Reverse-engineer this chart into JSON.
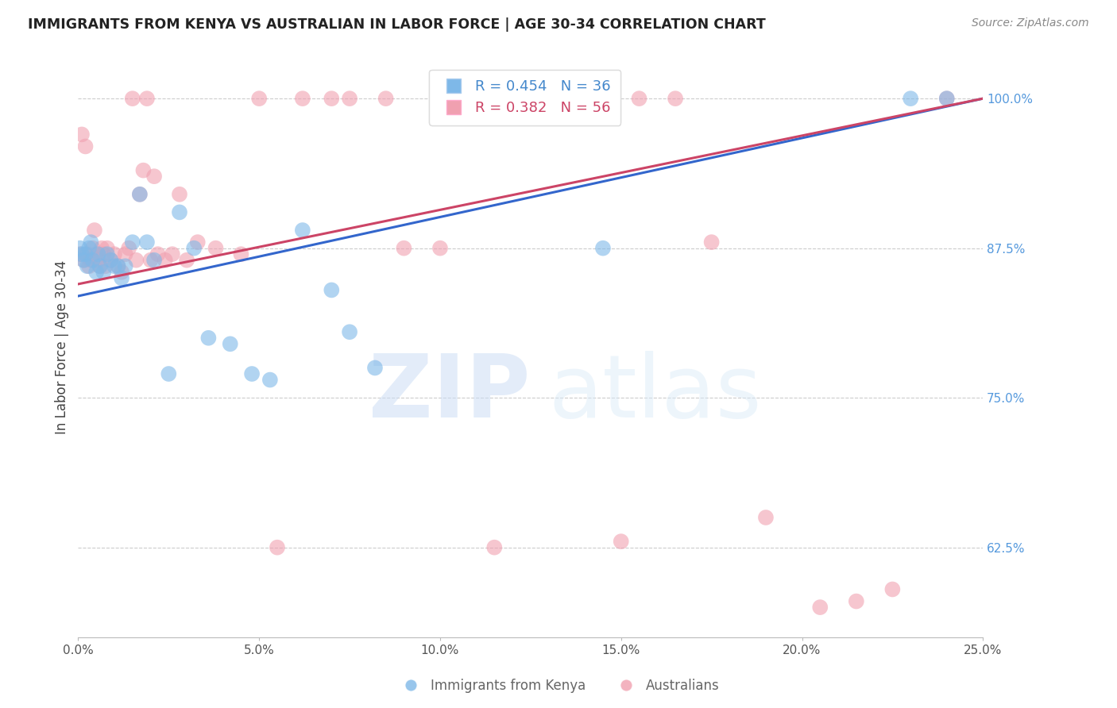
{
  "title": "IMMIGRANTS FROM KENYA VS AUSTRALIAN IN LABOR FORCE | AGE 30-34 CORRELATION CHART",
  "source": "Source: ZipAtlas.com",
  "ylabel": "In Labor Force | Age 30-34",
  "xlim": [
    0.0,
    25.0
  ],
  "ylim": [
    55.0,
    103.5
  ],
  "xlabel_vals": [
    0.0,
    5.0,
    10.0,
    15.0,
    20.0,
    25.0
  ],
  "ylabel_vals": [
    62.5,
    75.0,
    87.5,
    100.0
  ],
  "blue_color": "#7eb8e8",
  "pink_color": "#f0a0b0",
  "blue_line_color": "#3366cc",
  "pink_line_color": "#cc4466",
  "blue_R": 0.454,
  "blue_N": 36,
  "pink_R": 0.382,
  "pink_N": 56,
  "kenya_x": [
    0.05,
    0.1,
    0.15,
    0.2,
    0.25,
    0.3,
    0.35,
    0.4,
    0.5,
    0.55,
    0.6,
    0.7,
    0.8,
    0.9,
    1.0,
    1.1,
    1.2,
    1.3,
    1.5,
    1.7,
    1.9,
    2.1,
    2.5,
    2.8,
    3.2,
    3.6,
    4.2,
    4.8,
    5.3,
    6.2,
    7.0,
    7.5,
    8.2,
    14.5,
    23.0,
    24.0
  ],
  "kenya_y": [
    87.5,
    87.0,
    86.5,
    87.0,
    86.0,
    87.5,
    88.0,
    86.5,
    85.5,
    87.0,
    86.0,
    85.5,
    87.0,
    86.5,
    86.0,
    86.0,
    85.0,
    86.0,
    88.0,
    92.0,
    88.0,
    86.5,
    77.0,
    90.5,
    87.5,
    80.0,
    79.5,
    77.0,
    76.5,
    89.0,
    84.0,
    80.5,
    77.5,
    87.5,
    100.0,
    100.0
  ],
  "aus_x": [
    0.05,
    0.1,
    0.15,
    0.2,
    0.25,
    0.3,
    0.35,
    0.4,
    0.45,
    0.5,
    0.55,
    0.6,
    0.65,
    0.7,
    0.75,
    0.8,
    0.9,
    1.0,
    1.1,
    1.2,
    1.3,
    1.4,
    1.5,
    1.6,
    1.7,
    1.8,
    1.9,
    2.0,
    2.1,
    2.2,
    2.4,
    2.6,
    2.8,
    3.0,
    3.3,
    3.8,
    4.5,
    5.0,
    5.5,
    6.2,
    7.0,
    7.5,
    8.5,
    9.0,
    10.0,
    11.5,
    14.0,
    15.0,
    15.5,
    16.5,
    17.5,
    19.0,
    20.5,
    21.5,
    22.5,
    24.0
  ],
  "aus_y": [
    87.0,
    97.0,
    86.5,
    96.0,
    87.0,
    86.0,
    86.5,
    87.5,
    89.0,
    87.0,
    86.5,
    86.0,
    87.5,
    87.0,
    86.0,
    87.5,
    86.5,
    87.0,
    86.0,
    85.5,
    87.0,
    87.5,
    100.0,
    86.5,
    92.0,
    94.0,
    100.0,
    86.5,
    93.5,
    87.0,
    86.5,
    87.0,
    92.0,
    86.5,
    88.0,
    87.5,
    87.0,
    100.0,
    62.5,
    100.0,
    100.0,
    100.0,
    100.0,
    87.5,
    87.5,
    62.5,
    100.0,
    63.0,
    100.0,
    100.0,
    88.0,
    65.0,
    57.5,
    58.0,
    59.0,
    100.0
  ],
  "blue_line_x0": 0.0,
  "blue_line_y0": 83.5,
  "blue_line_x1": 25.0,
  "blue_line_y1": 100.0,
  "pink_line_x0": 0.0,
  "pink_line_y0": 84.5,
  "pink_line_x1": 25.0,
  "pink_line_y1": 100.0
}
